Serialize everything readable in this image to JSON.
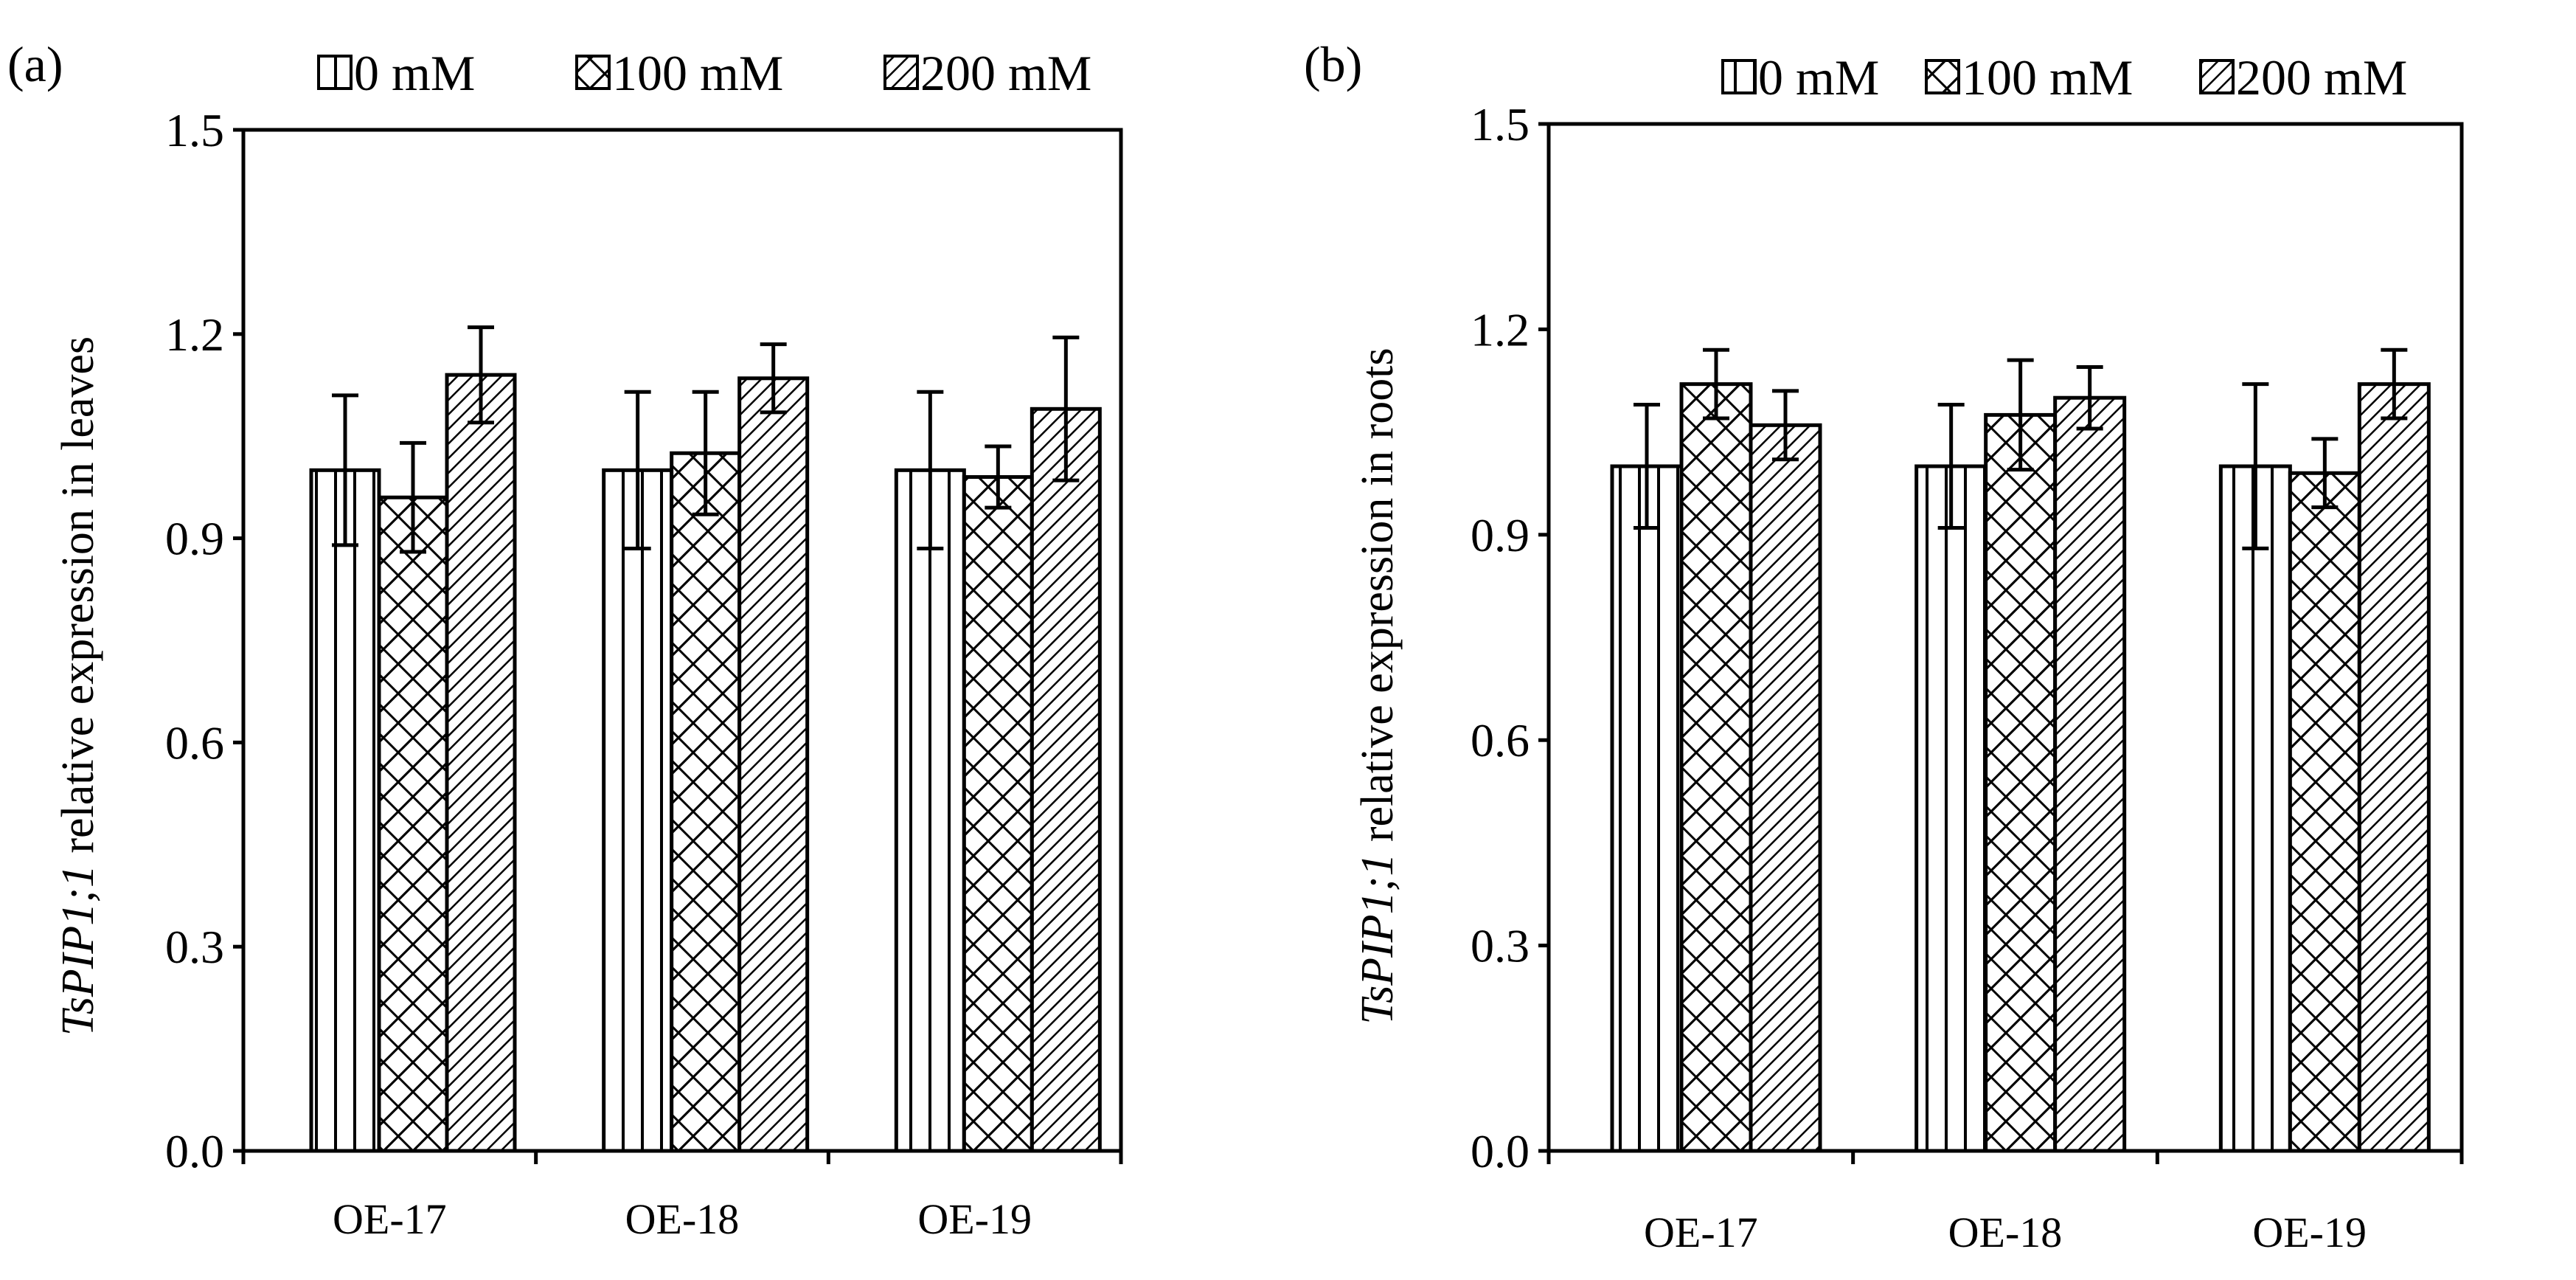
{
  "chart_data": [
    {
      "type": "bar",
      "panel_label": "(a)",
      "ylabel_italic": "TsPIP1;1",
      "ylabel_rest": " relative  expression in leaves",
      "xlabel": "",
      "ylim": [
        0,
        1.5
      ],
      "yticks": [
        "0.0",
        "0.3",
        "0.6",
        "0.9",
        "1.2",
        "1.5"
      ],
      "categories": [
        "OE-17",
        "OE-18",
        "OE-19"
      ],
      "legend_position": "top",
      "series": [
        {
          "name": "0 mM",
          "values": [
            1.0,
            1.0,
            1.0
          ],
          "errors": [
            0.11,
            0.115,
            0.115
          ]
        },
        {
          "name": "100 mM",
          "values": [
            0.96,
            1.025,
            0.99
          ],
          "errors": [
            0.08,
            0.09,
            0.045
          ]
        },
        {
          "name": "200 mM",
          "values": [
            1.14,
            1.135,
            1.09
          ],
          "errors": [
            0.07,
            0.05,
            0.105
          ]
        }
      ]
    },
    {
      "type": "bar",
      "panel_label": "(b)",
      "ylabel_italic": "TsPIP1;1",
      "ylabel_rest": " relative  expression in roots",
      "xlabel": "",
      "ylim": [
        0,
        1.5
      ],
      "yticks": [
        "0.0",
        "0.3",
        "0.6",
        "0.9",
        "1.2",
        "1.5"
      ],
      "categories": [
        "OE-17",
        "OE-18",
        "OE-19"
      ],
      "legend_position": "top",
      "series": [
        {
          "name": "0 mM",
          "values": [
            1.0,
            1.0,
            1.0
          ],
          "errors": [
            0.09,
            0.09,
            0.12
          ]
        },
        {
          "name": "100 mM",
          "values": [
            1.12,
            1.075,
            0.99
          ],
          "errors": [
            0.05,
            0.08,
            0.05
          ]
        },
        {
          "name": "200 mM",
          "values": [
            1.06,
            1.1,
            1.12
          ],
          "errors": [
            0.05,
            0.045,
            0.05
          ]
        }
      ]
    }
  ]
}
